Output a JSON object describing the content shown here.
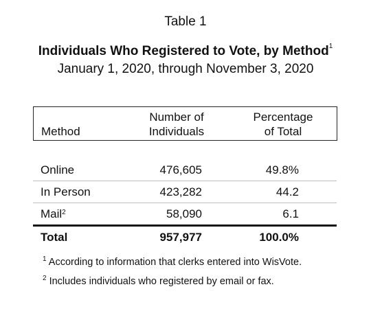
{
  "table_number": "Table 1",
  "title": "Individuals Who Registered to Vote, by Method",
  "title_note_marker": "1",
  "subtitle": "January 1, 2020, through November 3, 2020",
  "headers": {
    "method": "Method",
    "number_line1": "Number of",
    "number_line2": "Individuals",
    "percent_line1": "Percentage",
    "percent_line2": "of Total"
  },
  "rows": [
    {
      "method": "Online",
      "marker": "",
      "number": "476,605",
      "percent": "49.8%"
    },
    {
      "method": "In Person",
      "marker": "",
      "number": "423,282",
      "percent": "44.2"
    },
    {
      "method": "Mail",
      "marker": "2",
      "number": "58,090",
      "percent": "6.1"
    }
  ],
  "total": {
    "method": "Total",
    "number": "957,977",
    "percent": "100.0%"
  },
  "notes": [
    {
      "marker": "1",
      "text": "According to information that clerks entered into WisVote."
    },
    {
      "marker": "2",
      "text": "Includes individuals who registered by email or fax."
    }
  ]
}
